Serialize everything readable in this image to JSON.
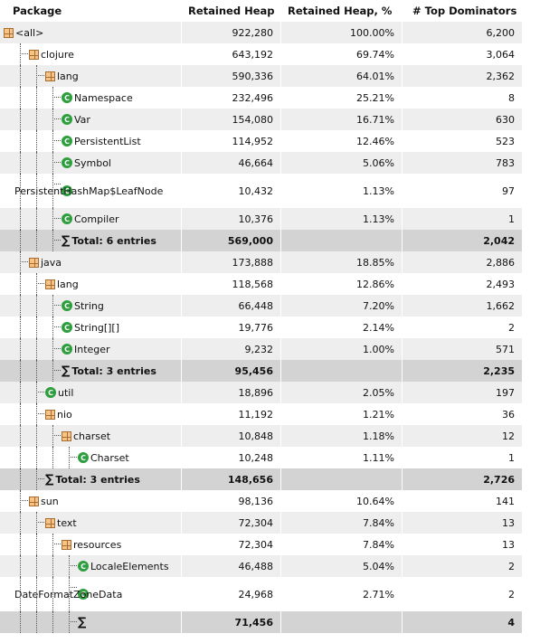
{
  "headers": {
    "package": "Package",
    "retained_heap": "Retained Heap",
    "retained_heap_pct": "Retained Heap, %",
    "top_dominators": "# Top Dominators"
  },
  "rows": [
    {
      "depth": 0,
      "icon": "package",
      "name": "<all>",
      "heap": "922,280",
      "pct": "100.00%",
      "dom": "6,200"
    },
    {
      "depth": 1,
      "icon": "package",
      "name": "clojure",
      "heap": "643,192",
      "pct": "69.74%",
      "dom": "3,064"
    },
    {
      "depth": 2,
      "icon": "package",
      "name": "lang",
      "heap": "590,336",
      "pct": "64.01%",
      "dom": "2,362"
    },
    {
      "depth": 3,
      "icon": "class",
      "name": "Namespace",
      "heap": "232,496",
      "pct": "25.21%",
      "dom": "8"
    },
    {
      "depth": 3,
      "icon": "class",
      "name": "Var",
      "heap": "154,080",
      "pct": "16.71%",
      "dom": "630"
    },
    {
      "depth": 3,
      "icon": "class",
      "name": "PersistentList",
      "heap": "114,952",
      "pct": "12.46%",
      "dom": "523"
    },
    {
      "depth": 3,
      "icon": "class",
      "name": "Symbol",
      "heap": "46,664",
      "pct": "5.06%",
      "dom": "783"
    },
    {
      "depth": 3,
      "icon": "class",
      "name": "PersistentHashMap$LeafNode",
      "heap": "10,432",
      "pct": "1.13%",
      "dom": "97",
      "wrap": true
    },
    {
      "depth": 3,
      "icon": "class",
      "name": "Compiler",
      "heap": "10,376",
      "pct": "1.13%",
      "dom": "1"
    },
    {
      "depth": 3,
      "icon": "sum",
      "name": "Total: 6 entries",
      "heap": "569,000",
      "pct": "",
      "dom": "2,042",
      "total": true
    },
    {
      "depth": 1,
      "icon": "package",
      "name": "java",
      "heap": "173,888",
      "pct": "18.85%",
      "dom": "2,886"
    },
    {
      "depth": 2,
      "icon": "package",
      "name": "lang",
      "heap": "118,568",
      "pct": "12.86%",
      "dom": "2,493"
    },
    {
      "depth": 3,
      "icon": "class",
      "name": "String",
      "heap": "66,448",
      "pct": "7.20%",
      "dom": "1,662"
    },
    {
      "depth": 3,
      "icon": "class",
      "name": "String[][]",
      "heap": "19,776",
      "pct": "2.14%",
      "dom": "2"
    },
    {
      "depth": 3,
      "icon": "class",
      "name": "Integer",
      "heap": "9,232",
      "pct": "1.00%",
      "dom": "571"
    },
    {
      "depth": 3,
      "icon": "sum",
      "name": "Total: 3 entries",
      "heap": "95,456",
      "pct": "",
      "dom": "2,235",
      "total": true
    },
    {
      "depth": 2,
      "icon": "class",
      "name": "util",
      "heap": "18,896",
      "pct": "2.05%",
      "dom": "197"
    },
    {
      "depth": 2,
      "icon": "package",
      "name": "nio",
      "heap": "11,192",
      "pct": "1.21%",
      "dom": "36"
    },
    {
      "depth": 3,
      "icon": "package",
      "name": "charset",
      "heap": "10,848",
      "pct": "1.18%",
      "dom": "12"
    },
    {
      "depth": 4,
      "icon": "class",
      "name": "Charset",
      "heap": "10,248",
      "pct": "1.11%",
      "dom": "1"
    },
    {
      "depth": 2,
      "icon": "sum",
      "name": "Total: 3 entries",
      "heap": "148,656",
      "pct": "",
      "dom": "2,726",
      "total": true
    },
    {
      "depth": 1,
      "icon": "package",
      "name": "sun",
      "heap": "98,136",
      "pct": "10.64%",
      "dom": "141"
    },
    {
      "depth": 2,
      "icon": "package",
      "name": "text",
      "heap": "72,304",
      "pct": "7.84%",
      "dom": "13"
    },
    {
      "depth": 3,
      "icon": "package",
      "name": "resources",
      "heap": "72,304",
      "pct": "7.84%",
      "dom": "13"
    },
    {
      "depth": 4,
      "icon": "class",
      "name": "LocaleElements",
      "heap": "46,488",
      "pct": "5.04%",
      "dom": "2"
    },
    {
      "depth": 4,
      "icon": "class",
      "name": "DateFormatZoneData",
      "heap": "24,968",
      "pct": "2.71%",
      "dom": "2",
      "wrap": true
    },
    {
      "depth": 4,
      "icon": "sum",
      "name": "",
      "heap": "71,456",
      "pct": "",
      "dom": "4",
      "total": true,
      "partial": true
    }
  ]
}
